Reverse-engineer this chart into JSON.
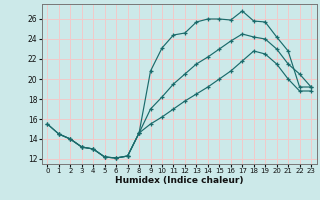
{
  "xlabel": "Humidex (Indice chaleur)",
  "background_color": "#cce9e9",
  "grid_color": "#f2caca",
  "line_color": "#1a6b6b",
  "xlim": [
    -0.5,
    23.5
  ],
  "ylim": [
    11.5,
    27.5
  ],
  "xticks": [
    0,
    1,
    2,
    3,
    4,
    5,
    6,
    7,
    8,
    9,
    10,
    11,
    12,
    13,
    14,
    15,
    16,
    17,
    18,
    19,
    20,
    21,
    22,
    23
  ],
  "yticks": [
    12,
    14,
    16,
    18,
    20,
    22,
    24,
    26
  ],
  "line1_x": [
    0,
    1,
    2,
    3,
    4,
    5,
    6,
    7,
    8,
    9,
    10,
    11,
    12,
    13,
    14,
    15,
    16,
    17,
    18,
    19,
    20,
    21,
    22,
    23
  ],
  "line1_y": [
    15.5,
    14.5,
    14.0,
    13.2,
    13.0,
    12.2,
    12.1,
    12.3,
    14.6,
    20.8,
    23.1,
    24.4,
    24.6,
    25.7,
    26.0,
    26.0,
    25.9,
    26.8,
    25.8,
    25.7,
    24.2,
    22.8,
    19.2,
    19.2
  ],
  "line2_x": [
    0,
    1,
    2,
    3,
    4,
    5,
    6,
    7,
    8,
    9,
    10,
    11,
    12,
    13,
    14,
    15,
    16,
    17,
    18,
    19,
    20,
    21,
    22,
    23
  ],
  "line2_y": [
    15.5,
    14.5,
    14.0,
    13.2,
    13.0,
    12.2,
    12.1,
    12.3,
    14.6,
    17.0,
    18.2,
    19.5,
    20.5,
    21.5,
    22.2,
    23.0,
    23.8,
    24.5,
    24.2,
    24.0,
    23.0,
    21.5,
    20.5,
    19.2
  ],
  "line3_x": [
    1,
    2,
    3,
    4,
    5,
    6,
    7,
    8,
    9,
    10,
    11,
    12,
    13,
    14,
    15,
    16,
    17,
    18,
    19,
    20,
    21,
    22,
    23
  ],
  "line3_y": [
    14.5,
    14.0,
    13.2,
    13.0,
    12.2,
    12.1,
    12.3,
    14.6,
    15.5,
    16.2,
    17.0,
    17.8,
    18.5,
    19.2,
    20.0,
    20.8,
    21.8,
    22.8,
    22.5,
    21.5,
    20.0,
    18.8,
    18.8
  ]
}
